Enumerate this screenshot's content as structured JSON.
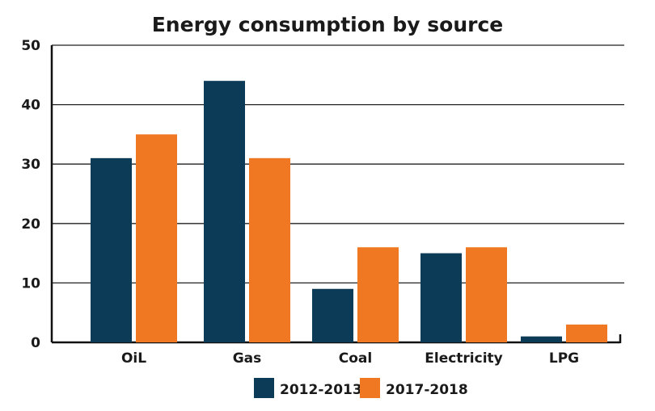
{
  "chart_data": {
    "type": "bar",
    "title": "Energy consumption by source",
    "xlabel": "",
    "ylabel": "",
    "categories": [
      "OiL",
      "Gas",
      "Coal",
      "Electricity",
      "LPG"
    ],
    "series": [
      {
        "name": "2012-2013",
        "color": "#0c3b57",
        "values": [
          31,
          44,
          9,
          15,
          1
        ]
      },
      {
        "name": "2017-2018",
        "color": "#f07822",
        "values": [
          35,
          31,
          16,
          16,
          3
        ]
      }
    ],
    "ylim": [
      0,
      50
    ],
    "yticks": [
      "0",
      "10",
      "20",
      "30",
      "40",
      "50"
    ],
    "grid": true,
    "legend_position": "bottom"
  }
}
